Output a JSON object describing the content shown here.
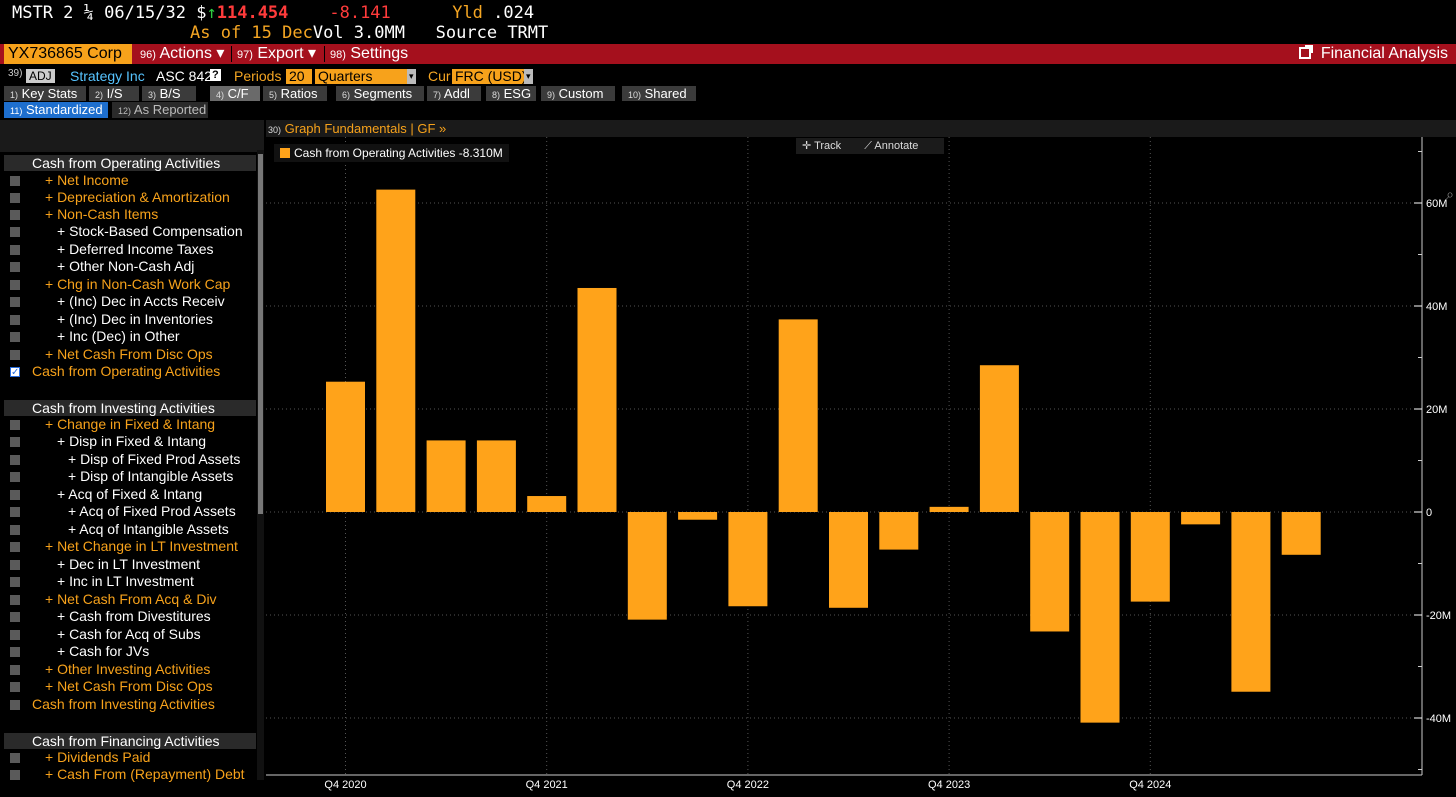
{
  "quote": {
    "ticker": "MSTR 2 ¼ 06/15/32",
    "currency_symbol": "$",
    "arrow": "↑",
    "price": "114.454",
    "change": "-8.141",
    "yield_label": "Yld",
    "yield_value": ".024",
    "as_of": "As of 15 Dec",
    "vol": "Vol 3.0MM",
    "source": "Source TRMT"
  },
  "menu": {
    "security": "YX736865 Corp",
    "actions_num": "96)",
    "actions": "Actions ▾",
    "export_num": "97)",
    "export": "Export ▾",
    "settings_num": "98)",
    "settings": "Settings",
    "financial_analysis": "Financial Analysis"
  },
  "company": {
    "num": "39)",
    "adj": "ADJ",
    "name": "Strategy Inc",
    "standard": "ASC 842",
    "help": "?",
    "periods_label": "Periods",
    "periods_value": "20",
    "period_type": "Quarters",
    "cur_label": "Cur",
    "cur_value": "FRC (USD)"
  },
  "tabs": [
    {
      "num": "1)",
      "label": "Key Stats"
    },
    {
      "num": "2)",
      "label": "I/S"
    },
    {
      "num": "3)",
      "label": "B/S"
    },
    {
      "num": "4)",
      "label": "C/F"
    },
    {
      "num": "5)",
      "label": "Ratios"
    },
    {
      "num": "6)",
      "label": "Segments"
    },
    {
      "num": "7)",
      "label": "Addl"
    },
    {
      "num": "8)",
      "label": "ESG"
    },
    {
      "num": "9)",
      "label": "Custom"
    },
    {
      "num": "10)",
      "label": "Shared"
    }
  ],
  "subtabs": [
    {
      "num": "11)",
      "label": "Standardized"
    },
    {
      "num": "12)",
      "label": "As Reported"
    }
  ],
  "left": {
    "sections": [
      {
        "title": "Cash from Operating Activities"
      },
      {
        "title": "Cash from Investing Activities"
      },
      {
        "title": "Cash from Financing Activities"
      }
    ],
    "rows": [
      "+ Net Income",
      "+ Depreciation & Amortization",
      "+ Non-Cash Items",
      "+ Stock-Based Compensation",
      "+ Deferred Income Taxes",
      "+ Other Non-Cash Adj",
      "+ Chg in Non-Cash Work Cap",
      "+ (Inc) Dec in Accts Receiv",
      "+ (Inc) Dec in Inventories",
      "+ Inc (Dec) in Other",
      "+ Net Cash From Disc Ops",
      "Cash from Operating Activities",
      "+ Change in Fixed & Intang",
      "+ Disp in Fixed & Intang",
      "+ Disp of Fixed Prod Assets",
      "+ Disp of Intangible Assets",
      "+ Acq of Fixed & Intang",
      "+ Acq of Fixed Prod Assets",
      "+ Acq of Intangible Assets",
      "+ Net Change in LT Investment",
      "+ Dec in LT Investment",
      "+ Inc in LT Investment",
      "+ Net Cash From Acq & Div",
      "+ Cash from Divestitures",
      "+ Cash for Acq of Subs",
      "+ Cash for JVs",
      "+ Other Investing Activities",
      "+ Net Cash From Disc Ops",
      "Cash from Investing Activities",
      "+ Dividends Paid",
      "+ Cash From (Repayment) Debt"
    ]
  },
  "chart_panel": {
    "header_num": "30)",
    "header": "Graph Fundamentals | GF »",
    "legend": "Cash from Operating Activities -8.310M",
    "track": "Track",
    "annotate": "Annotate"
  },
  "colors": {
    "bar": "#ffa31a",
    "menu_red": "#a5101d",
    "accent_orange": "#f7a21b",
    "active_blue": "#1e6fce"
  },
  "chart_data": {
    "type": "bar",
    "series": [
      {
        "name": "Cash from Operating Activities",
        "values": [
          25.3,
          62.6,
          13.9,
          13.9,
          3.1,
          43.5,
          -20.9,
          -1.5,
          -18.3,
          37.4,
          -18.6,
          -7.3,
          1.0,
          28.5,
          -23.2,
          -40.9,
          -17.4,
          -2.4,
          -34.9,
          -8.31
        ]
      }
    ],
    "periods": 20,
    "x_tick_labels": [
      {
        "index": 0,
        "label": "Q4 2020"
      },
      {
        "index": 4,
        "label": "Q4 2021"
      },
      {
        "index": 8,
        "label": "Q4 2022"
      },
      {
        "index": 12,
        "label": "Q4 2023"
      },
      {
        "index": 16,
        "label": "Q4 2024"
      }
    ],
    "ylim": [
      -50,
      72
    ],
    "y_ticks": [
      60,
      40,
      20,
      0,
      -20,
      -40
    ],
    "y_tick_labels": [
      "60M",
      "40M",
      "20M",
      "0",
      "-20M",
      "-40M"
    ],
    "y_axis_side": "right",
    "grid": true,
    "legend_position": "top-left"
  }
}
